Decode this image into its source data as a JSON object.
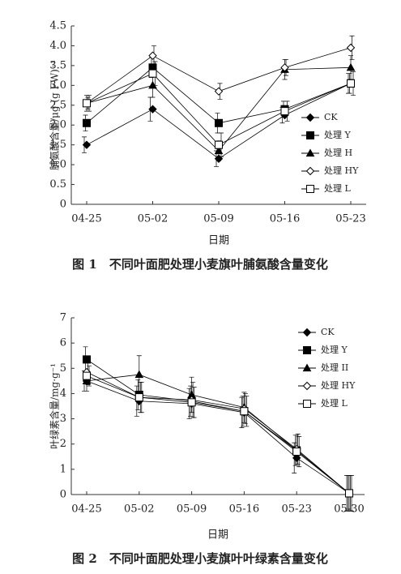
{
  "chart_data": [
    {
      "type": "line",
      "y_label": "脯氨酸含量/μg·(g FW)⁻¹",
      "x_label": "日期",
      "caption": "图 1　不同叶面肥处理小麦旗叶脯氨酸含量变化",
      "categories": [
        "04-25",
        "05-02",
        "05-09",
        "05-16",
        "05-23"
      ],
      "ylim": [
        0,
        4.5
      ],
      "yticks": [
        0,
        0.5,
        {
          "value": 1,
          "label": "1.0"
        },
        1.5,
        {
          "value": 2,
          "label": "2.0"
        },
        2.5,
        {
          "value": 3,
          "label": "3.0"
        },
        3.5,
        {
          "value": 4,
          "label": "4.0"
        },
        4.5
      ],
      "series": [
        {
          "name": "CK",
          "color": "#000000",
          "marker": "diamond",
          "values": [
            1.5,
            2.4,
            1.15,
            2.25,
            3.05
          ],
          "errors": [
            0.2,
            0.3,
            0.2,
            0.2,
            0.25
          ]
        },
        {
          "name": "处理 Y",
          "color": "#000000",
          "marker": "square",
          "values": [
            2.05,
            3.45,
            2.05,
            2.4,
            3.05
          ],
          "errors": [
            0.2,
            0.25,
            0.25,
            0.2,
            0.25
          ]
        },
        {
          "name": "处理 H",
          "color": "#000000",
          "marker": "triangle",
          "values": [
            2.55,
            3.0,
            1.35,
            3.4,
            3.45
          ],
          "errors": [
            0.2,
            0.3,
            0.25,
            0.25,
            0.3
          ]
        },
        {
          "name": "处理 HY",
          "color": "#000000",
          "marker": "diamond-open",
          "values": [
            2.55,
            3.75,
            2.85,
            3.45,
            3.95
          ],
          "errors": [
            0.15,
            0.25,
            0.2,
            0.2,
            0.3
          ]
        },
        {
          "name": "处理 L",
          "color": "#000000",
          "marker": "square-open",
          "values": [
            2.55,
            3.3,
            1.5,
            2.35,
            3.05
          ],
          "errors": [
            0.2,
            0.3,
            0.3,
            0.25,
            0.3
          ]
        }
      ]
    },
    {
      "type": "line",
      "y_label": "叶绿素含量/mg·g⁻¹",
      "x_label": "日期",
      "caption": "图 2　不同叶面肥处理小麦旗叶叶绿素含量变化",
      "categories": [
        "04-25",
        "05-02",
        "05-09",
        "05-16",
        "05-23",
        "05-30"
      ],
      "ylim": [
        0,
        7
      ],
      "yticks": [
        0,
        1,
        2,
        3,
        4,
        5,
        6,
        7
      ],
      "series": [
        {
          "name": "CK",
          "color": "#000000",
          "marker": "diamond",
          "values": [
            4.5,
            3.7,
            3.6,
            3.25,
            1.45,
            0.05
          ],
          "errors": [
            0.4,
            0.6,
            0.6,
            0.6,
            0.6,
            0.7
          ]
        },
        {
          "name": "处理 Y",
          "color": "#000000",
          "marker": "square",
          "values": [
            5.35,
            3.95,
            3.7,
            3.3,
            1.75,
            0.05
          ],
          "errors": [
            0.5,
            0.6,
            0.6,
            0.6,
            0.6,
            0.7
          ]
        },
        {
          "name": "处理 II",
          "color": "#000000",
          "marker": "triangle",
          "values": [
            4.5,
            4.75,
            3.95,
            3.45,
            1.75,
            0.05
          ],
          "errors": [
            0.4,
            0.75,
            0.7,
            0.6,
            0.6,
            0.7
          ]
        },
        {
          "name": "处理 HY",
          "color": "#000000",
          "marker": "diamond-open",
          "values": [
            4.85,
            3.85,
            3.75,
            3.4,
            1.8,
            0.05
          ],
          "errors": [
            0.5,
            0.6,
            0.7,
            0.6,
            0.6,
            0.7
          ]
        },
        {
          "name": "处理 L",
          "color": "#000000",
          "marker": "square-open",
          "values": [
            4.7,
            3.85,
            3.65,
            3.3,
            1.7,
            0.05
          ],
          "errors": [
            0.4,
            0.6,
            0.6,
            0.6,
            0.6,
            0.7
          ]
        }
      ]
    }
  ]
}
